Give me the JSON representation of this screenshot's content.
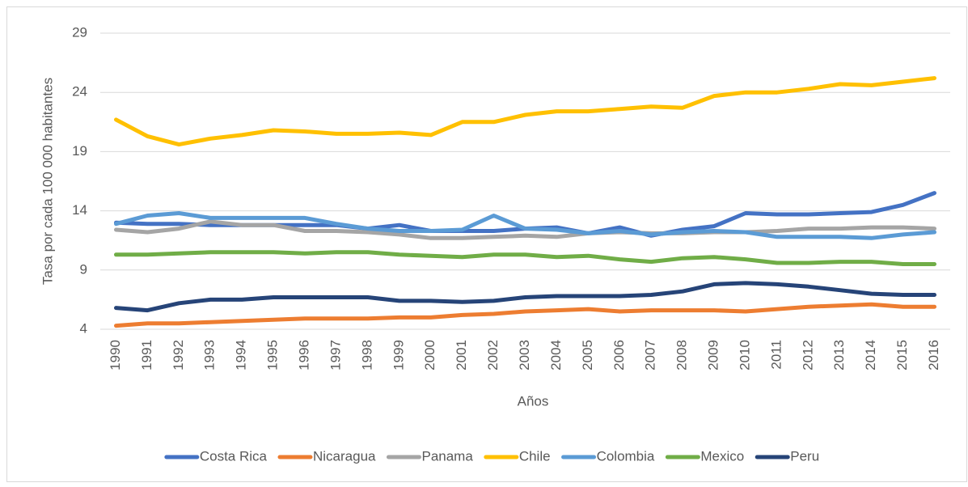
{
  "chart_data": {
    "type": "line",
    "x_label": "Años",
    "y_label": "Tasa por cada 100 000 habitantes",
    "categories": [
      "1990",
      "1991",
      "1992",
      "1993",
      "1994",
      "1995",
      "1996",
      "1997",
      "1998",
      "1999",
      "2000",
      "2001",
      "2002",
      "2003",
      "2004",
      "2005",
      "2006",
      "2007",
      "2008",
      "2009",
      "2010",
      "2011",
      "2012",
      "2013",
      "2014",
      "2015",
      "2016"
    ],
    "ylim": [
      4,
      29
    ],
    "yticks": [
      4,
      9,
      14,
      19,
      24,
      29
    ],
    "grid": true,
    "legend": "bottom",
    "series": [
      {
        "name": "Costa Rica",
        "color": "#4472c4",
        "values": [
          13.0,
          12.9,
          12.9,
          12.8,
          12.8,
          12.8,
          12.8,
          12.8,
          12.5,
          12.8,
          12.3,
          12.3,
          12.3,
          12.5,
          12.6,
          12.1,
          12.6,
          11.9,
          12.4,
          12.7,
          13.8,
          13.7,
          13.7,
          13.8,
          13.9,
          14.5,
          15.5
        ]
      },
      {
        "name": "Nicaragua",
        "color": "#ed7d31",
        "values": [
          4.3,
          4.5,
          4.5,
          4.6,
          4.7,
          4.8,
          4.9,
          4.9,
          4.9,
          5.0,
          5.0,
          5.2,
          5.3,
          5.5,
          5.6,
          5.7,
          5.5,
          5.6,
          5.6,
          5.6,
          5.5,
          5.7,
          5.9,
          6.0,
          6.1,
          5.9,
          5.9
        ]
      },
      {
        "name": "Panama",
        "color": "#a5a5a5",
        "values": [
          12.4,
          12.2,
          12.5,
          13.1,
          12.8,
          12.8,
          12.3,
          12.3,
          12.2,
          12.0,
          11.7,
          11.7,
          11.8,
          11.9,
          11.8,
          12.1,
          12.2,
          12.1,
          12.1,
          12.2,
          12.2,
          12.3,
          12.5,
          12.5,
          12.6,
          12.6,
          12.5
        ]
      },
      {
        "name": "Chile",
        "color": "#ffc000",
        "values": [
          21.7,
          20.3,
          19.6,
          20.1,
          20.4,
          20.8,
          20.7,
          20.5,
          20.5,
          20.6,
          20.4,
          21.5,
          21.5,
          22.1,
          22.4,
          22.4,
          22.6,
          22.8,
          22.7,
          23.7,
          24.0,
          24.0,
          24.3,
          24.7,
          24.6,
          24.9,
          25.2
        ]
      },
      {
        "name": "Colombia",
        "color": "#5b9bd5",
        "values": [
          12.9,
          13.6,
          13.8,
          13.4,
          13.4,
          13.4,
          13.4,
          12.9,
          12.5,
          12.3,
          12.3,
          12.4,
          13.6,
          12.5,
          12.4,
          12.1,
          12.3,
          12.0,
          12.2,
          12.3,
          12.2,
          11.8,
          11.8,
          11.8,
          11.7,
          12.0,
          12.2
        ]
      },
      {
        "name": "Mexico",
        "color": "#70ad47",
        "values": [
          10.3,
          10.3,
          10.4,
          10.5,
          10.5,
          10.5,
          10.4,
          10.5,
          10.5,
          10.3,
          10.2,
          10.1,
          10.3,
          10.3,
          10.1,
          10.2,
          9.9,
          9.7,
          10.0,
          10.1,
          9.9,
          9.6,
          9.6,
          9.7,
          9.7,
          9.5,
          9.5
        ]
      },
      {
        "name": "Peru",
        "color": "#264478",
        "values": [
          5.8,
          5.6,
          6.2,
          6.5,
          6.5,
          6.7,
          6.7,
          6.7,
          6.7,
          6.4,
          6.4,
          6.3,
          6.4,
          6.7,
          6.8,
          6.8,
          6.8,
          6.9,
          7.2,
          7.8,
          7.9,
          7.8,
          7.6,
          7.3,
          7.0,
          6.9,
          6.9
        ]
      }
    ]
  }
}
